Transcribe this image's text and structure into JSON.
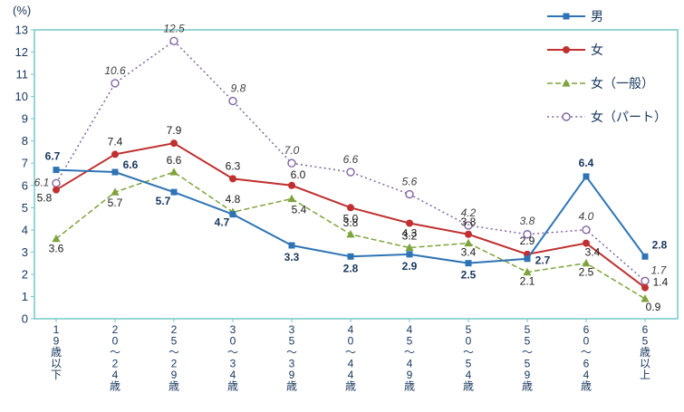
{
  "chart_data": {
    "type": "line",
    "title": "",
    "ylabel": "(%)",
    "xlabel": "",
    "ylim": [
      0,
      13
    ],
    "ytick_step": 1,
    "grid": false,
    "legend_position": "top-right",
    "categories": [
      "19歳以下",
      "20～24歳",
      "25～29歳",
      "30～34歳",
      "35～39歳",
      "40～44歳",
      "45～49歳",
      "50～54歳",
      "55～59歳",
      "60～64歳",
      "65歳以上"
    ],
    "series": [
      {
        "name": "男",
        "color": "#2e74b5",
        "marker": "square",
        "line_style": "solid",
        "label_style": "bold",
        "label_color": "#17365d",
        "values": [
          6.7,
          6.6,
          5.7,
          4.7,
          3.3,
          2.8,
          2.9,
          2.5,
          2.7,
          6.4,
          2.8
        ],
        "label_offsets": [
          [
            -4,
            -11
          ],
          [
            17,
            -4
          ],
          [
            -12,
            14
          ],
          [
            -12,
            13
          ],
          [
            0,
            17
          ],
          [
            0,
            17
          ],
          [
            0,
            17
          ],
          [
            0,
            17
          ],
          [
            17,
            6
          ],
          [
            0,
            -11
          ],
          [
            16,
            -9
          ]
        ]
      },
      {
        "name": "女",
        "color": "#c03030",
        "marker": "circle",
        "line_style": "solid",
        "label_style": "normal",
        "label_color": "#1a1a1a",
        "values": [
          5.8,
          7.4,
          7.9,
          6.3,
          6.0,
          5.0,
          4.3,
          3.8,
          2.9,
          3.4,
          1.4
        ],
        "label_offsets": [
          [
            -13,
            13
          ],
          [
            0,
            -10
          ],
          [
            0,
            -10
          ],
          [
            0,
            -10
          ],
          [
            7,
            -8
          ],
          [
            0,
            16
          ],
          [
            0,
            15
          ],
          [
            0,
            -10
          ],
          [
            0,
            -11
          ],
          [
            7,
            14
          ],
          [
            17,
            -2
          ]
        ]
      },
      {
        "name": "女（一般）",
        "color": "#7fa33c",
        "marker": "triangle",
        "line_style": "dashed",
        "label_style": "normal",
        "label_color": "#1a1a1a",
        "values": [
          3.6,
          5.7,
          6.6,
          4.8,
          5.4,
          3.8,
          3.2,
          3.4,
          2.1,
          2.5,
          0.9
        ],
        "label_offsets": [
          [
            0,
            15
          ],
          [
            0,
            16
          ],
          [
            0,
            -9
          ],
          [
            0,
            -10
          ],
          [
            8,
            16
          ],
          [
            0,
            -9
          ],
          [
            0,
            -9
          ],
          [
            0,
            14
          ],
          [
            0,
            14
          ],
          [
            0,
            14
          ],
          [
            9,
            13
          ]
        ]
      },
      {
        "name": "女（パート）",
        "color": "#8064a2",
        "marker": "circle-open",
        "line_style": "dotted",
        "label_style": "italic",
        "label_color": "#404040",
        "values": [
          6.1,
          10.6,
          12.5,
          9.8,
          7.0,
          6.6,
          5.6,
          4.2,
          3.8,
          4.0,
          1.7
        ],
        "label_offsets": [
          [
            -16,
            3
          ],
          [
            0,
            -10
          ],
          [
            0,
            -10
          ],
          [
            6,
            -10
          ],
          [
            0,
            -10
          ],
          [
            0,
            -10
          ],
          [
            0,
            -10
          ],
          [
            0,
            -10
          ],
          [
            0,
            -11
          ],
          [
            0,
            -11
          ],
          [
            15,
            -8
          ]
        ]
      }
    ],
    "colors": {
      "axis_border": "#76c7c7",
      "axis_text": "#17365d"
    }
  }
}
